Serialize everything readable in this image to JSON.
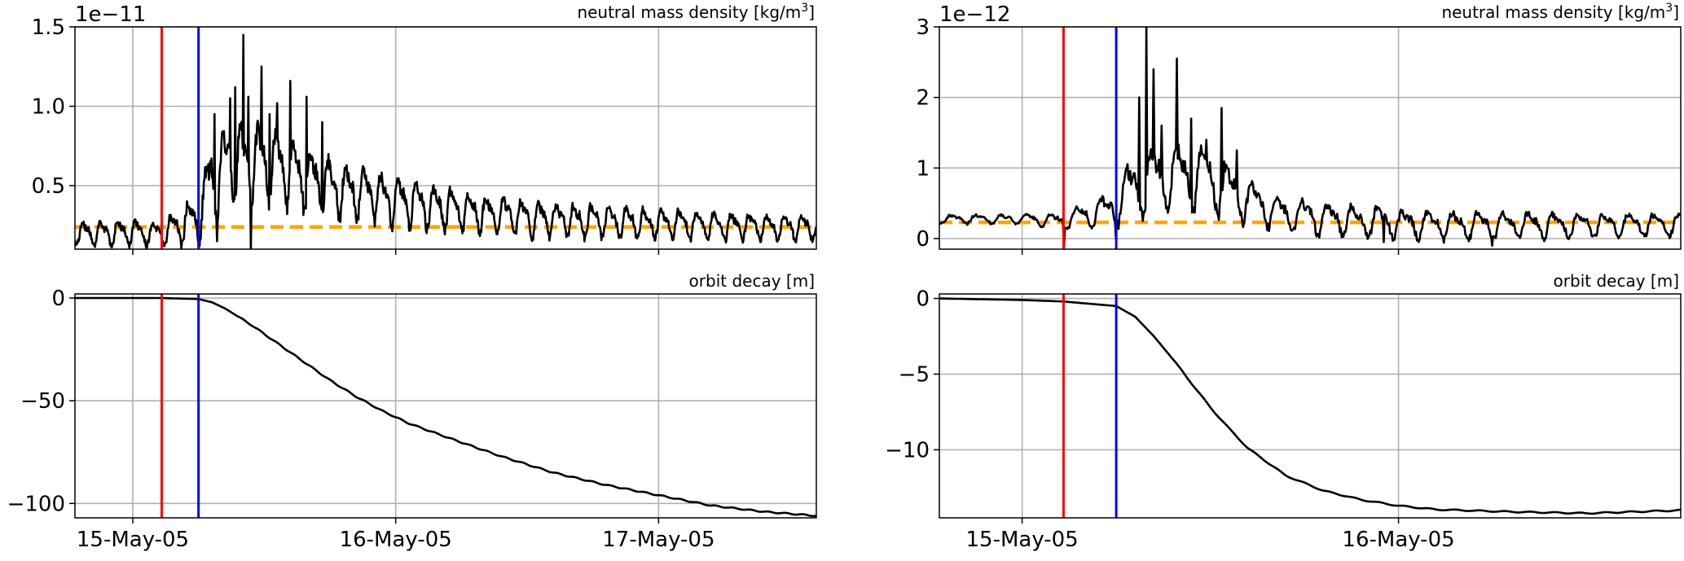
{
  "figure": {
    "background": "#ffffff",
    "colors": {
      "trace": "#000000",
      "storm_onset_line": "#ff0000",
      "orbit_change_line": "#0000ff",
      "baseline_dashed": "#ffa500",
      "grid": "#b0b0b0"
    }
  },
  "chart_data": [
    {
      "id": "left-density",
      "type": "line",
      "title": "neutral mass density [kg/m³]",
      "offset_label": "1e−11",
      "xlim": [
        -0.22,
        2.6
      ],
      "ylim": [
        0.1,
        1.5
      ],
      "yticks": [
        0.5,
        1.0,
        1.5
      ],
      "ytick_labels": [
        "0.5",
        "1.0",
        "1.5"
      ],
      "xticks": [
        0,
        1,
        2
      ],
      "grid": true,
      "vlines": [
        {
          "x": 0.11,
          "color": "#ff0000"
        },
        {
          "x": 0.25,
          "color": "#0000ff"
        }
      ],
      "hline": {
        "y": 0.24,
        "color": "#ffa500",
        "style": "dashed"
      },
      "trace": {
        "kind": "oscillating",
        "x": [
          -0.22,
          0.0,
          0.11,
          0.25,
          0.3,
          0.4,
          0.5,
          0.6,
          0.75,
          0.9,
          1.1,
          1.3,
          1.5,
          1.8,
          2.1,
          2.4,
          2.6
        ],
        "mean": [
          0.2,
          0.21,
          0.2,
          0.3,
          0.55,
          0.68,
          0.66,
          0.6,
          0.5,
          0.45,
          0.38,
          0.34,
          0.3,
          0.28,
          0.26,
          0.24,
          0.24
        ],
        "amplitude": [
          0.07,
          0.08,
          0.08,
          0.15,
          0.25,
          0.25,
          0.24,
          0.22,
          0.18,
          0.16,
          0.14,
          0.12,
          0.11,
          0.1,
          0.09,
          0.08,
          0.08
        ],
        "cycles_per_day": 15,
        "spikes": [
          [
            0.31,
            0.95
          ],
          [
            0.37,
            1.05
          ],
          [
            0.39,
            1.12
          ],
          [
            0.42,
            1.45
          ],
          [
            0.44,
            1.06
          ],
          [
            0.49,
            1.25
          ],
          [
            0.52,
            0.95
          ],
          [
            0.55,
            1.02
          ],
          [
            0.6,
            1.16
          ],
          [
            0.66,
            1.06
          ],
          [
            0.72,
            0.9
          ]
        ],
        "dips": [
          [
            0.11,
            0.1
          ],
          [
            0.25,
            0.14
          ],
          [
            0.32,
            0.15
          ],
          [
            0.45,
            0.1
          ]
        ]
      }
    },
    {
      "id": "left-decay",
      "type": "line",
      "title": "orbit decay [m]",
      "xlim": [
        -0.22,
        2.6
      ],
      "ylim": [
        -107,
        2
      ],
      "yticks": [
        0,
        -50,
        -100
      ],
      "ytick_labels": [
        "0",
        "−50",
        "−100"
      ],
      "xticks": [
        0,
        1,
        2
      ],
      "xtick_labels": [
        "15-May-05",
        "16-May-05",
        "17-May-05"
      ],
      "grid": true,
      "vlines": [
        {
          "x": 0.11,
          "color": "#ff0000"
        },
        {
          "x": 0.25,
          "color": "#0000ff"
        }
      ],
      "trace": {
        "kind": "smooth",
        "x": [
          -0.22,
          0.0,
          0.11,
          0.25,
          0.3,
          0.35,
          0.45,
          0.55,
          0.65,
          0.75,
          0.85,
          0.95,
          1.05,
          1.2,
          1.4,
          1.6,
          1.8,
          2.0,
          2.2,
          2.4,
          2.6
        ],
        "y": [
          0,
          0,
          0,
          -0.5,
          -2,
          -5,
          -13,
          -22,
          -31,
          -40,
          -48,
          -55,
          -61,
          -68,
          -77,
          -85,
          -91,
          -96,
          -101,
          -104,
          -106
        ]
      }
    },
    {
      "id": "right-density",
      "type": "line",
      "title": "neutral mass density [kg/m³]",
      "offset_label": "1e−12",
      "xlim": [
        -0.22,
        1.75
      ],
      "ylim": [
        -0.15,
        3.0
      ],
      "yticks": [
        0,
        1,
        2,
        3
      ],
      "ytick_labels": [
        "0",
        "1",
        "2",
        "3"
      ],
      "xticks": [
        0,
        1
      ],
      "grid": true,
      "vlines": [
        {
          "x": 0.11,
          "color": "#ff0000"
        },
        {
          "x": 0.25,
          "color": "#0000ff"
        }
      ],
      "hline": {
        "y": 0.23,
        "color": "#ffa500",
        "style": "dashed"
      },
      "trace": {
        "kind": "oscillating",
        "x": [
          -0.22,
          0.0,
          0.11,
          0.25,
          0.3,
          0.4,
          0.5,
          0.6,
          0.7,
          0.9,
          1.1,
          1.3,
          1.5,
          1.75
        ],
        "mean": [
          0.28,
          0.28,
          0.25,
          0.45,
          0.8,
          0.9,
          0.85,
          0.55,
          0.35,
          0.25,
          0.2,
          0.2,
          0.2,
          0.2
        ],
        "amplitude": [
          0.06,
          0.07,
          0.12,
          0.25,
          0.5,
          0.5,
          0.45,
          0.3,
          0.25,
          0.22,
          0.2,
          0.18,
          0.17,
          0.15
        ],
        "cycles_per_day": 15,
        "spikes": [
          [
            0.31,
            2.0
          ],
          [
            0.33,
            3.0
          ],
          [
            0.35,
            2.4
          ],
          [
            0.37,
            1.6
          ],
          [
            0.41,
            2.55
          ],
          [
            0.45,
            1.7
          ],
          [
            0.49,
            1.4
          ],
          [
            0.53,
            1.85
          ],
          [
            0.57,
            1.25
          ]
        ],
        "dips": [
          [
            0.11,
            -0.15
          ],
          [
            0.25,
            0.0
          ],
          [
            0.96,
            -0.05
          ],
          [
            1.25,
            -0.1
          ]
        ]
      }
    },
    {
      "id": "right-decay",
      "type": "line",
      "title": "orbit decay [m]",
      "xlim": [
        -0.22,
        1.75
      ],
      "ylim": [
        -14.5,
        0.3
      ],
      "yticks": [
        0,
        -5,
        -10
      ],
      "ytick_labels": [
        "0",
        "−5",
        "−10"
      ],
      "xticks": [
        0,
        1
      ],
      "xtick_labels": [
        "15-May-05",
        "16-May-05"
      ],
      "grid": true,
      "vlines": [
        {
          "x": 0.11,
          "color": "#ff0000"
        },
        {
          "x": 0.25,
          "color": "#0000ff"
        }
      ],
      "trace": {
        "kind": "smooth",
        "x": [
          -0.22,
          0.0,
          0.11,
          0.25,
          0.3,
          0.35,
          0.4,
          0.45,
          0.5,
          0.55,
          0.6,
          0.7,
          0.8,
          0.9,
          1.0,
          1.1,
          1.3,
          1.5,
          1.75
        ],
        "y": [
          0,
          -0.1,
          -0.2,
          -0.5,
          -1.2,
          -2.5,
          -4.0,
          -5.6,
          -7.2,
          -8.6,
          -9.9,
          -11.7,
          -12.7,
          -13.3,
          -13.7,
          -13.95,
          -14.1,
          -14.2,
          -14.0
        ]
      }
    }
  ]
}
